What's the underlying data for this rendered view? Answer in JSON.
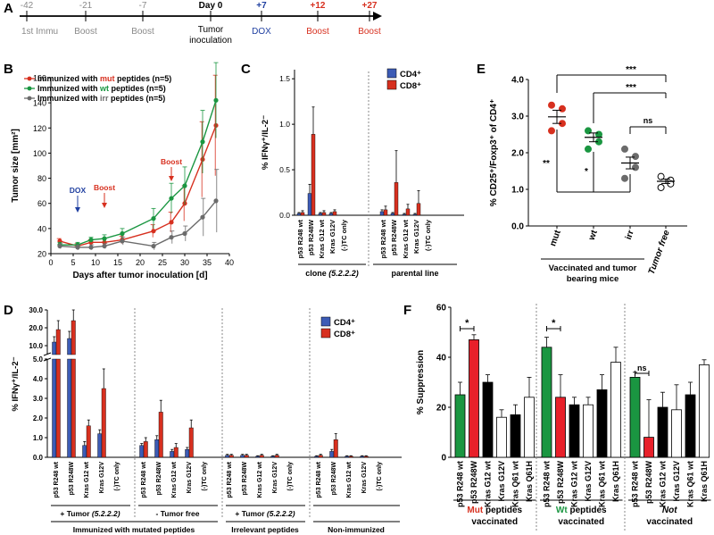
{
  "panels": {
    "A": {
      "letter": "A",
      "ticks": [
        {
          "top": "-42",
          "bottom": "1st Immu",
          "color": "#8a8a8a",
          "bold": false
        },
        {
          "top": "-21",
          "bottom": "Boost",
          "color": "#8a8a8a",
          "bold": false
        },
        {
          "top": "-7",
          "bottom": "Boost",
          "color": "#8a8a8a",
          "bold": false
        },
        {
          "top": "Day 0",
          "bottom": "Tumor inoculation",
          "color": "#000000",
          "bold": true
        },
        {
          "top": "+7",
          "bottom": "DOX",
          "color": "#1f3fa0",
          "bold": true
        },
        {
          "top": "+12",
          "bottom": "Boost",
          "color": "#d7301f",
          "bold": true
        },
        {
          "top": "+27",
          "bottom": "Boost",
          "color": "#d7301f",
          "bold": true
        }
      ]
    },
    "B": {
      "letter": "B",
      "dox_label": "DOX",
      "boost_label": "Boost"
    },
    "C": {
      "letter": "C"
    },
    "D": {
      "letter": "D"
    },
    "E": {
      "letter": "E"
    },
    "F": {
      "letter": "F"
    }
  },
  "chart_data": [
    {
      "panel": "B",
      "type": "line",
      "xlabel": "Days after tumor inoculation [d]",
      "ylabel": "Tumor size [mm²]",
      "xlim": [
        0,
        40
      ],
      "ylim": [
        20,
        160
      ],
      "xticks": [
        0,
        5,
        10,
        15,
        20,
        25,
        30,
        35,
        40
      ],
      "yticks": [
        20,
        40,
        60,
        80,
        100,
        120,
        140,
        160
      ],
      "x": [
        2,
        6,
        9,
        12,
        16,
        23,
        27,
        30,
        34,
        37
      ],
      "series": [
        {
          "name": "Immunized with mut peptides (n=5)",
          "legend_parts": [
            "Immunized with ",
            "mut",
            " peptides (n=5)"
          ],
          "color": "#d7301f",
          "values": [
            30,
            26,
            29,
            29,
            31,
            38,
            45,
            60,
            95,
            122
          ],
          "errors": [
            2,
            2,
            2,
            3,
            3,
            5,
            8,
            14,
            30,
            40
          ]
        },
        {
          "name": "Immunized with wt peptides (n=5)",
          "legend_parts": [
            "Immunized with ",
            "wt",
            " peptides (n=5)"
          ],
          "color": "#1a9641",
          "values": [
            27,
            27,
            31,
            32,
            36,
            48,
            64,
            74,
            109,
            142
          ],
          "errors": [
            2,
            2,
            2,
            3,
            4,
            8,
            12,
            15,
            25,
            30
          ]
        },
        {
          "name": "Immunized with irr peptides (n=5)",
          "legend_parts": [
            "Immunized with ",
            "irr",
            " peptides (n=5)"
          ],
          "color": "#6b6b6b",
          "values": [
            26,
            25,
            25,
            26,
            30,
            26,
            33,
            36,
            49,
            62
          ],
          "errors": [
            2,
            2,
            2,
            2,
            3,
            3,
            5,
            6,
            15,
            25
          ]
        }
      ]
    },
    {
      "panel": "C",
      "type": "bar",
      "ylabel": "% IFNγ⁺/IL-2⁻",
      "ylim": [
        0,
        1.6
      ],
      "yticks": [
        0.0,
        0.5,
        1.0,
        1.5
      ],
      "ytick_labels": [
        "0.0",
        "0.5",
        "1.0",
        "1.5"
      ],
      "categories": [
        "p53 R248 wt",
        "p53 R248W",
        "Kras G12 wt",
        "Kras G12V",
        "(-)TC only",
        "p53 R248 wt",
        "p53 R248W",
        "Kras G12 wt",
        "Kras G12V",
        "(-)TC only"
      ],
      "series": [
        {
          "name": "CD4⁺",
          "color": "#3c5bb5",
          "values": [
            0.02,
            0.24,
            0.02,
            0.02,
            0.0,
            0.04,
            0.02,
            0.01,
            0.01,
            0.0
          ],
          "errors": [
            0.01,
            0.1,
            0.01,
            0.01,
            0.0,
            0.02,
            0.01,
            0.01,
            0.01,
            0.0
          ]
        },
        {
          "name": "CD8⁺",
          "color": "#d7301f",
          "values": [
            0.03,
            0.89,
            0.03,
            0.04,
            0.0,
            0.06,
            0.36,
            0.07,
            0.13,
            0.0
          ],
          "errors": [
            0.02,
            0.3,
            0.02,
            0.02,
            0.0,
            0.04,
            0.35,
            0.05,
            0.14,
            0.0
          ]
        }
      ],
      "groups": [
        "clone (5.2.2.2)",
        "parental line"
      ]
    },
    {
      "panel": "E",
      "type": "scatter",
      "ylabel": "% CD25⁺/Foxp3⁺ of CD4⁺",
      "ylim": [
        0,
        4
      ],
      "yticks": [
        0.0,
        1.0,
        2.0,
        3.0,
        4.0
      ],
      "ytick_labels": [
        "0.0",
        "1.0",
        "2.0",
        "3.0",
        "4.0"
      ],
      "categories": [
        "mut",
        "wt",
        "irr",
        "Tumor free"
      ],
      "points": [
        {
          "group": "mut",
          "color": "#d7301f",
          "values": [
            3.3,
            3.2,
            2.8,
            2.6
          ],
          "mean": 2.98,
          "sem": 0.18
        },
        {
          "group": "wt",
          "color": "#1a9641",
          "values": [
            2.6,
            2.5,
            2.3,
            2.1
          ],
          "mean": 2.42,
          "sem": 0.12
        },
        {
          "group": "irr",
          "color": "#6b6b6b",
          "values": [
            2.1,
            1.9,
            1.6,
            1.3
          ],
          "mean": 1.72,
          "sem": 0.16
        },
        {
          "group": "Tumor free",
          "color": "#ffffff",
          "values": [
            1.35,
            1.25,
            1.15,
            1.05
          ],
          "mean": 1.22,
          "sem": 0.06
        }
      ],
      "annotations": [
        "***",
        "***",
        "ns",
        "**",
        "*"
      ],
      "group_label": "Vaccinated and tumor bearing mice"
    },
    {
      "panel": "D",
      "type": "bar",
      "ylabel": "% IFNγ⁺/IL-2⁻",
      "yticks_lower": [
        0.0,
        1.0,
        2.0,
        3.0,
        4.0,
        5.0
      ],
      "ytick_labels_lower": [
        "0.0",
        "1.0",
        "2.0",
        "3.0",
        "4.0",
        "5.0"
      ],
      "yticks_upper": [
        10.0,
        20.0,
        30.0
      ],
      "ytick_labels_upper": [
        "10.0",
        "20.0",
        "30.0"
      ],
      "categories": [
        "p53 R248 wt",
        "p53 R248W",
        "Kras G12 wt",
        "Kras G12V",
        "(-)TC only",
        "p53 R248 wt",
        "p53 R248W",
        "Kras G12 wt",
        "Kras G12V",
        "(-)TC only",
        "p53 R248 wt",
        "p53 R248W",
        "Kras G12 wt",
        "Kras G12V",
        "(-)TC only",
        "p53 R248 wt",
        "p53 R248W",
        "Kras G12 wt",
        "Kras G12V",
        "(-)TC only"
      ],
      "series": [
        {
          "name": "CD4⁺",
          "color": "#3c5bb5",
          "values": [
            12.0,
            14.0,
            0.6,
            1.2,
            0.0,
            0.6,
            0.9,
            0.3,
            0.4,
            0.0,
            0.1,
            0.1,
            0.05,
            0.05,
            0.0,
            0.05,
            0.3,
            0.05,
            0.05,
            0.0
          ],
          "errors": [
            3.0,
            4.0,
            0.2,
            0.2,
            0.0,
            0.1,
            0.2,
            0.1,
            0.1,
            0.0,
            0.05,
            0.05,
            0.03,
            0.03,
            0.0,
            0.03,
            0.1,
            0.03,
            0.03,
            0.0
          ]
        },
        {
          "name": "CD8⁺",
          "color": "#d7301f",
          "values": [
            19.0,
            24.0,
            1.6,
            3.5,
            0.0,
            0.8,
            2.3,
            0.5,
            1.5,
            0.0,
            0.1,
            0.1,
            0.1,
            0.1,
            0.0,
            0.1,
            0.9,
            0.05,
            0.05,
            0.0
          ],
          "errors": [
            5.0,
            6.0,
            0.3,
            1.0,
            0.0,
            0.2,
            0.6,
            0.2,
            0.4,
            0.0,
            0.05,
            0.05,
            0.05,
            0.05,
            0.0,
            0.05,
            0.3,
            0.03,
            0.03,
            0.0
          ]
        }
      ],
      "groups": [
        "+ Tumor (5.2.2.2)",
        "- Tumor free",
        "+ Tumor (5.2.2.2)",
        ""
      ],
      "supergroups": [
        "Immunized with mutated peptides",
        "Irrelevant peptides",
        "Non-immunized"
      ]
    },
    {
      "panel": "F",
      "type": "bar",
      "ylabel": "% Suppression",
      "ylim": [
        0,
        60
      ],
      "yticks": [
        0,
        20,
        40,
        60
      ],
      "groups": [
        {
          "label_parts": [
            "Mut",
            " peptides"
          ],
          "label_line2": "vaccinated",
          "accent": "#d7301f",
          "categories": [
            "p53 R248 wt",
            "p53 R248W",
            "Kras G12 wt",
            "Kras G12V",
            "Kras Q61 wt",
            "Kras Q61H"
          ],
          "values": [
            25,
            47,
            30,
            16,
            17,
            24
          ],
          "errors": [
            5,
            2,
            3,
            3,
            4,
            8
          ],
          "colors": [
            "#1a9641",
            "#e8202a",
            "#000000",
            "#ffffff",
            "#000000",
            "#ffffff"
          ]
        },
        {
          "label_parts": [
            "Wt",
            " peptides"
          ],
          "label_line2": "vaccinated",
          "accent": "#1a9641",
          "categories": [
            "p53 R248 wt",
            "p53 R248W",
            "Kras G12 wt",
            "Kras G12V",
            "Kras Q61 wt",
            "Kras Q61H"
          ],
          "values": [
            44,
            24,
            21,
            21,
            27,
            38
          ],
          "errors": [
            4,
            9,
            3,
            3,
            6,
            6
          ],
          "colors": [
            "#1a9641",
            "#e8202a",
            "#000000",
            "#ffffff",
            "#000000",
            "#ffffff"
          ]
        },
        {
          "label_parts": [
            "Not",
            ""
          ],
          "label_line2": "vaccinated",
          "accent": "#000000",
          "categories": [
            "p53 R248 wt",
            "p53 R248W",
            "Kras G12 wt",
            "Kras G12V",
            "Kras Q61 wt",
            "Kras Q61H"
          ],
          "values": [
            32,
            8,
            20,
            19,
            25,
            37
          ],
          "errors": [
            2,
            15,
            6,
            10,
            5,
            2
          ],
          "colors": [
            "#1a9641",
            "#e8202a",
            "#000000",
            "#ffffff",
            "#000000",
            "#ffffff"
          ]
        }
      ],
      "annotations": [
        "*",
        "*",
        "ns"
      ]
    }
  ]
}
